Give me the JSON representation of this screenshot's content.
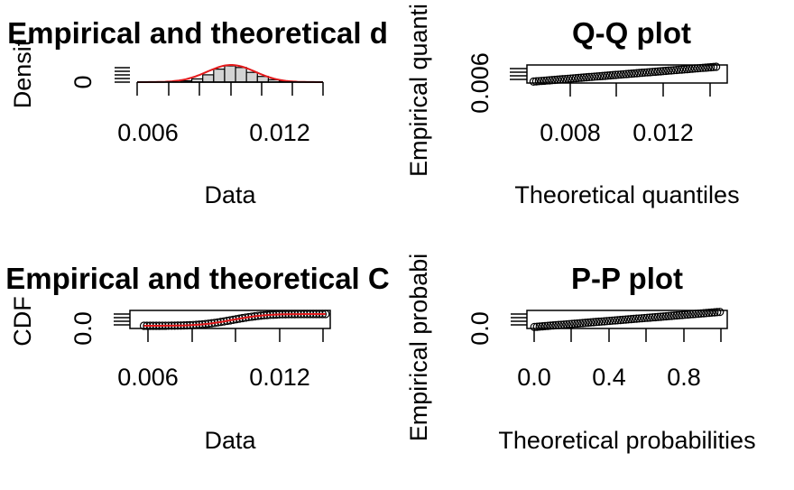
{
  "colors": {
    "fit_curve": "#e41a1c",
    "hist_fill": "#d3d3d3",
    "ink": "#000000"
  },
  "chart_data": [
    {
      "panel": "density",
      "type": "bar",
      "title": "Empirical and theoretical d",
      "xlabel": "Data",
      "ylabel": "Densit",
      "xticks": [
        "0.006",
        "0.012"
      ],
      "yticks": [
        "0"
      ],
      "xlim": [
        0.005,
        0.0135
      ],
      "bins": [
        0.007,
        0.0075,
        0.008,
        0.0085,
        0.009,
        0.0095,
        0.01,
        0.0105,
        0.011,
        0.0115,
        0.012
      ],
      "hist_rel_heights": [
        0.08,
        0.2,
        0.45,
        0.8,
        1.0,
        0.9,
        0.6,
        0.35,
        0.15,
        0.05
      ],
      "fit_mean": 0.0093,
      "fit_sd": 0.0011
    },
    {
      "panel": "qq",
      "type": "scatter",
      "title": "Q-Q plot",
      "xlabel": "Theoretical quantiles",
      "ylabel": "Empirical quanti",
      "xticks": [
        "0.008",
        "0.012"
      ],
      "yticks": [
        "0.006"
      ],
      "xlim": [
        0.0055,
        0.0145
      ],
      "ylim": [
        0.0055,
        0.0145
      ],
      "x_range": [
        0.0058,
        0.014
      ]
    },
    {
      "panel": "cdf",
      "type": "line",
      "title": "Empirical and theoretical C",
      "xlabel": "Data",
      "ylabel": "CDF",
      "xticks": [
        "0.006",
        "0.012"
      ],
      "yticks": [
        "0.0"
      ],
      "xlim": [
        0.0049,
        0.0135
      ],
      "ylim": [
        0,
        1
      ],
      "x_range": [
        0.0055,
        0.0133
      ],
      "fit_mean": 0.0093,
      "fit_sd": 0.0011
    },
    {
      "panel": "pp",
      "type": "scatter",
      "title": "P-P plot",
      "xlabel": "Theoretical probabilities",
      "ylabel": "Empirical probabi",
      "xticks": [
        "0.0",
        "0.4",
        "0.8"
      ],
      "yticks": [
        "0.0"
      ],
      "xlim": [
        -0.04,
        1.04
      ],
      "ylim": [
        -0.04,
        1.04
      ],
      "x_range": [
        0,
        1
      ]
    }
  ]
}
